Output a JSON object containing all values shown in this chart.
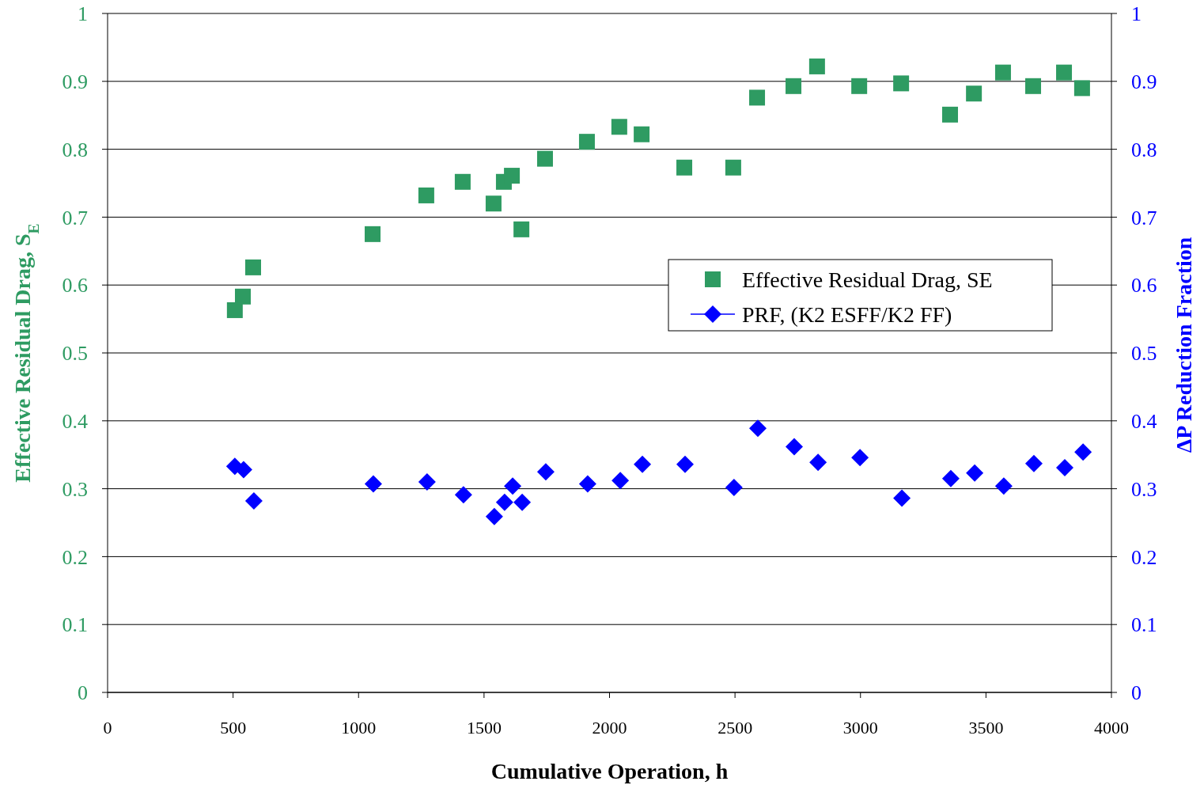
{
  "chart_data": {
    "type": "scatter",
    "xlabel": "Cumulative Operation, h",
    "ylabel": "Effective Residual Drag, S$_{E}$",
    "y2label": "ΔP Reduction Fraction",
    "xlim": [
      0,
      4000
    ],
    "xticks": [
      0,
      500,
      1000,
      1500,
      2000,
      2500,
      3000,
      3500,
      4000
    ],
    "ylim": [
      0,
      1
    ],
    "yticks": [
      0,
      0.1,
      0.2,
      0.3,
      0.4,
      0.5,
      0.6,
      0.7,
      0.8,
      0.9,
      1
    ],
    "y2lim": [
      0,
      1
    ],
    "y2ticks": [
      0,
      0.1,
      0.2,
      0.3,
      0.4,
      0.5,
      0.6,
      0.7,
      0.8,
      0.9,
      1
    ],
    "grid": "y",
    "legend": "right",
    "series": [
      {
        "name": "Effective Residual Drag, SE",
        "color": "#2e9b62",
        "marker": "square",
        "x": [
          507,
          539,
          580,
          1056,
          1270,
          1415,
          1538,
          1579,
          1611,
          1649,
          1743,
          1910,
          2039,
          2128,
          2298,
          2493,
          2588,
          2733,
          2827,
          2995,
          3162,
          3357,
          3452,
          3568,
          3688,
          3811,
          3883
        ],
        "values": [
          0.563,
          0.583,
          0.626,
          0.675,
          0.732,
          0.752,
          0.72,
          0.752,
          0.761,
          0.682,
          0.786,
          0.811,
          0.833,
          0.822,
          0.773,
          0.773,
          0.876,
          0.893,
          0.922,
          0.893,
          0.897,
          0.851,
          0.882,
          0.913,
          0.893,
          0.913,
          0.89
        ]
      },
      {
        "name": "PRF, (K2 ESFF/K2 FF)",
        "color": "#0000ff",
        "marker": "diamond",
        "axis": "y2",
        "x": [
          507,
          542,
          583,
          1059,
          1273,
          1418,
          1541,
          1582,
          1614,
          1652,
          1746,
          1913,
          2043,
          2131,
          2301,
          2496,
          2591,
          2736,
          2831,
          2998,
          3165,
          3360,
          3455,
          3571,
          3691,
          3814,
          3887
        ],
        "values": [
          0.333,
          0.328,
          0.282,
          0.307,
          0.31,
          0.291,
          0.259,
          0.28,
          0.304,
          0.28,
          0.325,
          0.307,
          0.312,
          0.336,
          0.336,
          0.302,
          0.389,
          0.362,
          0.339,
          0.346,
          0.286,
          0.315,
          0.323,
          0.304,
          0.337,
          0.331,
          0.354
        ]
      }
    ]
  }
}
